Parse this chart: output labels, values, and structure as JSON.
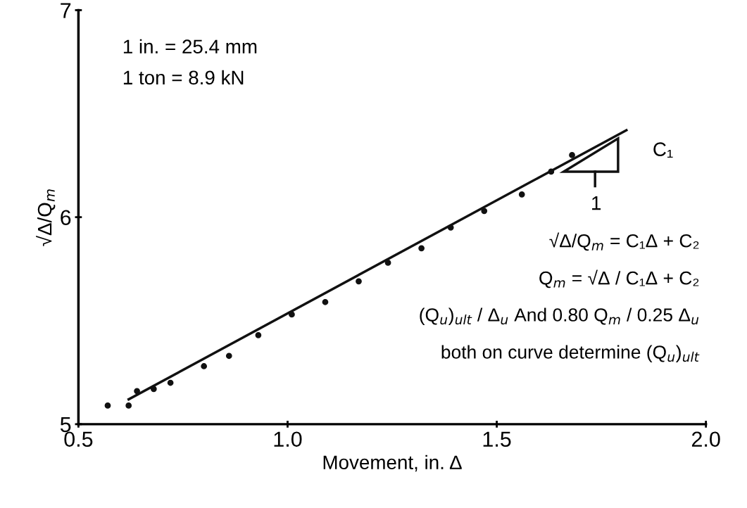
{
  "chart_data": {
    "type": "scatter",
    "xlabel": "Movement, in. Δ",
    "ylabel": "√Δ/Q$_{m}$",
    "xlim": [
      0.5,
      2.0
    ],
    "ylim": [
      5,
      7
    ],
    "xticks": [
      0.5,
      {
        "value": 1.0,
        "label": "1.0"
      },
      1.5,
      {
        "value": 2.0,
        "label": "2.0"
      }
    ],
    "yticks": [
      5,
      6,
      7
    ],
    "grid": false,
    "legend": false,
    "series": [
      {
        "color": "#111111",
        "marker": "circle",
        "x": [
          0.57,
          0.62,
          0.64,
          0.68,
          0.72,
          0.8,
          0.86,
          0.93,
          1.01,
          1.09,
          1.17,
          1.24,
          1.32,
          1.39,
          1.47,
          1.56,
          1.63,
          1.68
        ],
        "values": [
          5.09,
          5.09,
          5.16,
          5.17,
          5.2,
          5.28,
          5.33,
          5.43,
          5.53,
          5.59,
          5.69,
          5.78,
          5.85,
          5.95,
          6.03,
          6.11,
          6.22,
          6.3
        ]
      },
      {
        "type": "line",
        "color": "#111111",
        "line_style": "solid",
        "x": [
          0.62,
          1.81
        ],
        "values": [
          5.12,
          6.42
        ]
      }
    ],
    "annotations": [
      "1 in. = 25.4 mm",
      "1 ton = 8.9 kN",
      "C₁",
      "1",
      "√Δ/Q$_{m}$ = C₁Δ + C₂",
      "Q$_{m}$ = √Δ / C₁Δ + C₂",
      "(Q$_{u}$)$_{ult}$ / Δ$_{u}$ And 0.80 Q$_{m}$ / 0.25 Δ$_{u}$",
      "both on curve determine (Q$_{u}$)$_{ult}$"
    ]
  }
}
